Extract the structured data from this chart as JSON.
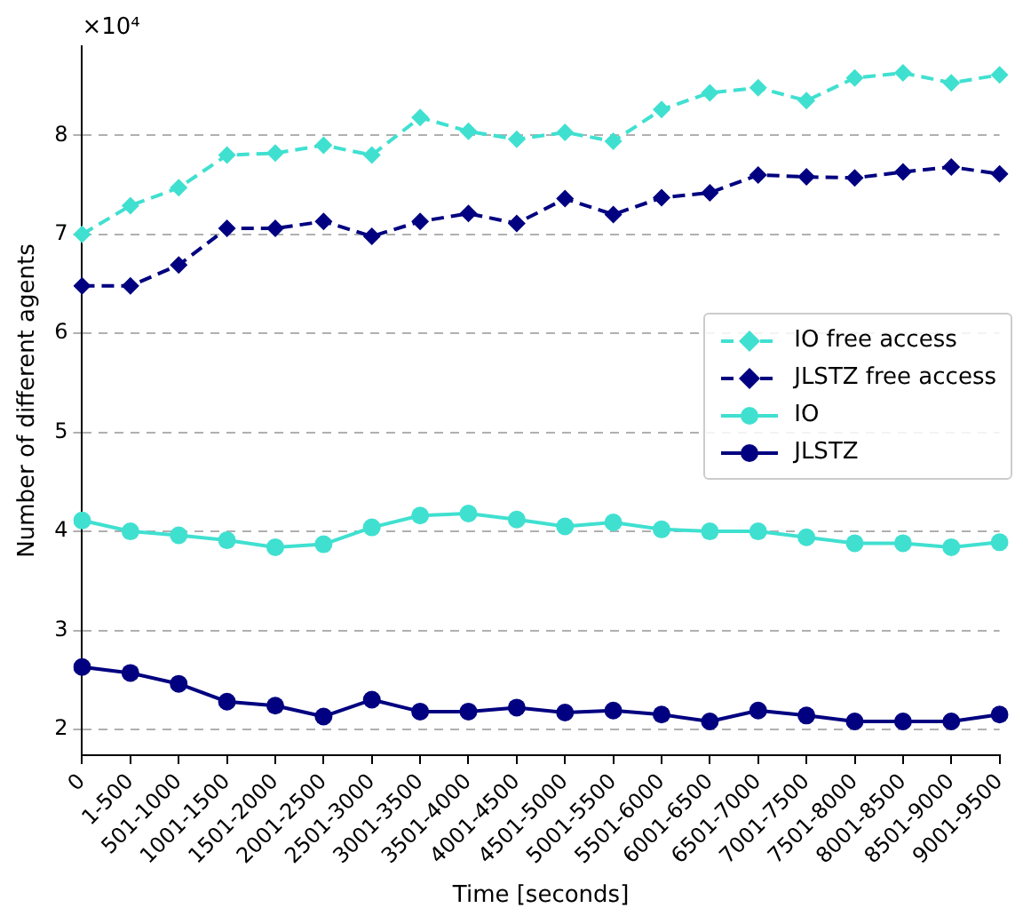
{
  "chart_data": {
    "type": "line",
    "xlabel": "Time [seconds]",
    "ylabel": "Number of different agents",
    "annotations": [
      "×10⁴"
    ],
    "categories": [
      "0",
      "1-500",
      "501-1000",
      "1001-1500",
      "1501-2000",
      "2001-2500",
      "2501-3000",
      "3001-3500",
      "3501-4000",
      "4001-4500",
      "4501-5000",
      "5001-5500",
      "5501-6000",
      "6001-6500",
      "6501-7000",
      "7001-7500",
      "7501-8000",
      "8001-8500",
      "8501-9000",
      "9001-9500"
    ],
    "series": [
      {
        "name": "IO free access",
        "color": "#40e0d0",
        "marker": "diamond",
        "line_style": "dashed",
        "values": [
          7.0,
          7.29,
          7.47,
          7.8,
          7.82,
          7.9,
          7.8,
          8.18,
          8.04,
          7.96,
          8.03,
          7.94,
          8.26,
          8.43,
          8.48,
          8.35,
          8.58,
          8.63,
          8.53,
          8.61
        ]
      },
      {
        "name": "JLSTZ free access",
        "color": "#000080",
        "marker": "diamond",
        "line_style": "dashed",
        "values": [
          6.48,
          6.48,
          6.69,
          7.06,
          7.06,
          7.13,
          6.98,
          7.13,
          7.21,
          7.11,
          7.36,
          7.2,
          7.37,
          7.42,
          7.6,
          7.58,
          7.57,
          7.63,
          7.68,
          7.61
        ]
      },
      {
        "name": "IO",
        "color": "#40e0d0",
        "marker": "circle",
        "line_style": "solid",
        "values": [
          4.11,
          4.0,
          3.96,
          3.91,
          3.84,
          3.87,
          4.04,
          4.16,
          4.18,
          4.12,
          4.05,
          4.09,
          4.02,
          4.0,
          4.0,
          3.94,
          3.88,
          3.88,
          3.84,
          3.89
        ]
      },
      {
        "name": "JLSTZ",
        "color": "#000080",
        "marker": "circle",
        "line_style": "solid",
        "values": [
          2.63,
          2.57,
          2.46,
          2.28,
          2.24,
          2.13,
          2.3,
          2.18,
          2.18,
          2.22,
          2.17,
          2.19,
          2.15,
          2.08,
          2.19,
          2.14,
          2.08,
          2.08,
          2.08,
          2.15
        ]
      }
    ],
    "ylim": [
      1.74,
      8.9
    ],
    "yticks": [
      2,
      3,
      4,
      5,
      6,
      7,
      8
    ],
    "grid": "y",
    "legend": "right"
  }
}
